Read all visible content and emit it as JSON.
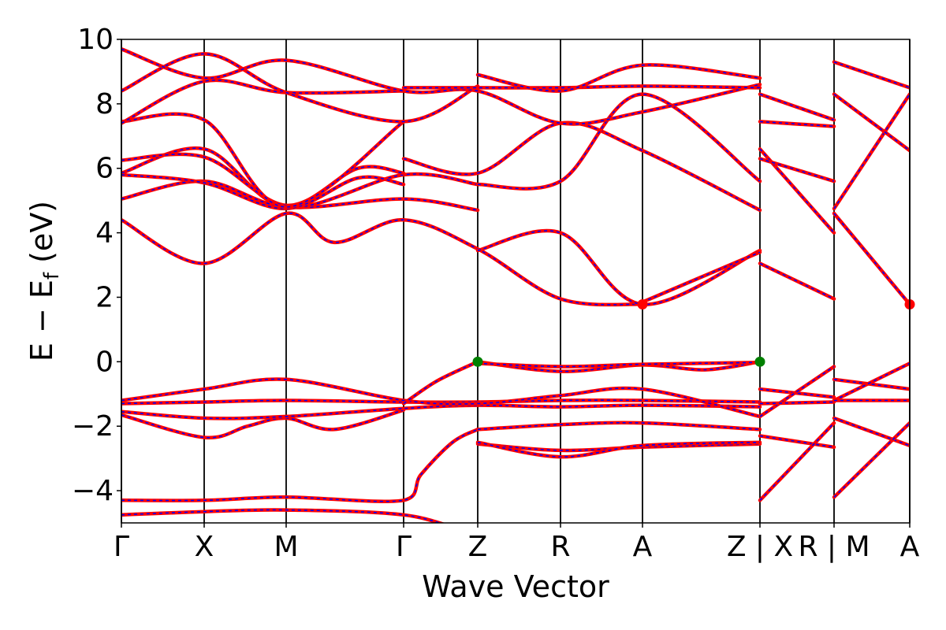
{
  "chart_data": {
    "type": "line",
    "title": "",
    "xlabel": "Wave Vector",
    "ylabel": "E − E_f (eV)",
    "ylabel_parts": {
      "main": "E − E",
      "sub": "f",
      "unit": " (eV)"
    },
    "ylim": [
      -5,
      10
    ],
    "y_ticks": [
      -4,
      -2,
      0,
      2,
      4,
      6,
      8,
      10
    ],
    "y_tick_labels": [
      "−4",
      "−2",
      "0",
      "2",
      "4",
      "6",
      "8",
      "10"
    ],
    "k_points": [
      {
        "label": "Γ",
        "k": 0.0
      },
      {
        "label": "X",
        "k": 0.105
      },
      {
        "label": "M",
        "k": 0.209
      },
      {
        "label": "Γ",
        "k": 0.358
      },
      {
        "label": "Z",
        "k": 0.452
      },
      {
        "label": "R",
        "k": 0.557
      },
      {
        "label": "A",
        "k": 0.661
      },
      {
        "label": "Z | X",
        "k": 0.81
      },
      {
        "label": "R | M",
        "k": 0.904
      },
      {
        "label": "A",
        "k": 1.0
      }
    ],
    "x_tick_labels": [
      "Γ",
      "X",
      "M",
      "Γ",
      "Z",
      "R",
      "A",
      "Z | X",
      "R | M",
      "A"
    ],
    "band_line_colors": {
      "outer": "#ff0000",
      "inner_dash": "#0000ff"
    },
    "markers": [
      {
        "type": "VBM",
        "k": 0.452,
        "energy": 0.0,
        "color": "#008000"
      },
      {
        "type": "VBM",
        "k": 0.81,
        "energy": 0.0,
        "color": "#008000"
      },
      {
        "type": "CBM",
        "k": 0.661,
        "energy": 1.78,
        "color": "#ff0000"
      },
      {
        "type": "CBM",
        "k": 1.0,
        "energy": 1.78,
        "color": "#ff0000"
      }
    ],
    "series": [
      {
        "k": [
          0.0,
          0.105,
          0.209,
          0.358,
          0.452,
          0.557,
          0.661,
          0.81
        ],
        "values": [
          -4.75,
          -4.65,
          -4.6,
          -4.75,
          -5.3,
          -5.3,
          -5.3,
          -5.3
        ]
      },
      {
        "k": [
          0.0,
          0.105,
          0.209,
          0.358,
          0.38,
          0.42,
          0.452
        ],
        "values": [
          -4.3,
          -4.3,
          -4.2,
          -4.3,
          -3.5,
          -2.5,
          -2.1
        ]
      },
      {
        "k": [
          0.452,
          0.557,
          0.661,
          0.81
        ],
        "values": [
          -2.1,
          -1.95,
          -1.9,
          -2.1
        ]
      },
      {
        "k": [
          0.452,
          0.557,
          0.661,
          0.81
        ],
        "values": [
          -2.55,
          -2.75,
          -2.65,
          -2.55
        ]
      },
      {
        "k": [
          0.452,
          0.557,
          0.661,
          0.81
        ],
        "values": [
          -2.5,
          -2.95,
          -2.6,
          -2.5
        ]
      },
      {
        "k": [
          0.0,
          0.105,
          0.16,
          0.209,
          0.27,
          0.358
        ],
        "values": [
          -1.65,
          -2.35,
          -2.0,
          -1.75,
          -2.1,
          -1.5
        ]
      },
      {
        "k": [
          0.0,
          0.105,
          0.209,
          0.358,
          0.452,
          0.557,
          0.661,
          0.81
        ],
        "values": [
          -1.55,
          -1.75,
          -1.7,
          -1.45,
          -1.35,
          -1.4,
          -1.35,
          -1.4
        ]
      },
      {
        "k": [
          0.0,
          0.105,
          0.209,
          0.358,
          0.452,
          0.557,
          0.661,
          0.81
        ],
        "values": [
          -1.3,
          -1.25,
          -1.2,
          -1.25,
          -1.25,
          -1.2,
          -1.2,
          -1.25
        ]
      },
      {
        "k": [
          0.0,
          0.105,
          0.209,
          0.358,
          0.452,
          0.557,
          0.661,
          0.81
        ],
        "values": [
          -1.2,
          -0.85,
          -0.55,
          -1.2,
          -1.3,
          -1.05,
          -0.85,
          -1.7
        ]
      },
      {
        "k": [
          0.358,
          0.4,
          0.452
        ],
        "values": [
          -1.3,
          -0.6,
          0.0
        ]
      },
      {
        "k": [
          0.452,
          0.557,
          0.661,
          0.74,
          0.81
        ],
        "values": [
          0.0,
          -0.3,
          -0.1,
          -0.25,
          0.0
        ]
      },
      {
        "k": [
          0.452,
          0.557,
          0.661,
          0.81
        ],
        "values": [
          -0.05,
          -0.15,
          -0.08,
          -0.02
        ]
      },
      {
        "k": [
          0.81,
          0.904
        ],
        "values": [
          -0.85,
          -1.1
        ]
      },
      {
        "k": [
          0.81,
          0.904
        ],
        "values": [
          -1.7,
          -0.15
        ]
      },
      {
        "k": [
          0.81,
          0.904
        ],
        "values": [
          -2.3,
          -2.65
        ]
      },
      {
        "k": [
          0.81,
          0.904
        ],
        "values": [
          -4.3,
          -1.9
        ]
      },
      {
        "k": [
          0.81,
          0.904
        ],
        "values": [
          -1.3,
          -1.25
        ]
      },
      {
        "k": [
          0.904,
          1.0
        ],
        "values": [
          -0.55,
          -0.85
        ]
      },
      {
        "k": [
          0.904,
          1.0
        ],
        "values": [
          -1.2,
          -0.05
        ]
      },
      {
        "k": [
          0.904,
          1.0
        ],
        "values": [
          -1.75,
          -2.6
        ]
      },
      {
        "k": [
          0.904,
          1.0
        ],
        "values": [
          -4.2,
          -1.9
        ]
      },
      {
        "k": [
          0.904,
          1.0
        ],
        "values": [
          -1.2,
          -1.2
        ]
      },
      {
        "k": [
          0.0,
          0.105,
          0.209,
          0.27,
          0.358,
          0.452,
          0.557,
          0.661
        ],
        "values": [
          4.4,
          3.05,
          4.6,
          3.7,
          4.4,
          3.5,
          1.95,
          1.78
        ]
      },
      {
        "k": [
          0.452,
          0.557,
          0.661,
          0.81
        ],
        "values": [
          3.45,
          4.0,
          1.78,
          3.45
        ]
      },
      {
        "k": [
          0.661,
          0.81
        ],
        "values": [
          1.85,
          3.4
        ]
      },
      {
        "k": [
          0.81,
          0.904
        ],
        "values": [
          3.05,
          1.95
        ]
      },
      {
        "k": [
          0.904,
          1.0
        ],
        "values": [
          4.6,
          1.78
        ]
      },
      {
        "k": [
          0.0,
          0.105,
          0.209,
          0.358,
          0.452
        ],
        "values": [
          5.05,
          5.6,
          4.8,
          5.05,
          4.7
        ]
      },
      {
        "k": [
          0.0,
          0.105,
          0.209,
          0.358,
          0.452
        ],
        "values": [
          5.85,
          6.6,
          4.8,
          5.8,
          5.5
        ]
      },
      {
        "k": [
          0.0,
          0.105,
          0.209,
          0.3,
          0.358
        ],
        "values": [
          5.8,
          5.55,
          4.75,
          5.7,
          5.5
        ]
      },
      {
        "k": [
          0.0,
          0.105,
          0.209,
          0.3,
          0.358
        ],
        "values": [
          6.25,
          6.35,
          4.85,
          6.0,
          5.85
        ]
      },
      {
        "k": [
          0.358,
          0.452,
          0.557,
          0.661,
          0.81
        ],
        "values": [
          6.3,
          5.85,
          7.4,
          6.55,
          4.7
        ]
      },
      {
        "k": [
          0.452,
          0.557,
          0.661,
          0.81
        ],
        "values": [
          5.5,
          5.6,
          8.3,
          5.6
        ]
      },
      {
        "k": [
          0.0,
          0.105,
          0.209,
          0.358
        ],
        "values": [
          7.45,
          7.5,
          4.8,
          7.45
        ]
      },
      {
        "k": [
          0.0,
          0.105,
          0.209,
          0.358
        ],
        "values": [
          7.4,
          8.7,
          8.35,
          8.4
        ]
      },
      {
        "k": [
          0.0,
          0.105,
          0.209,
          0.358,
          0.452
        ],
        "values": [
          8.4,
          9.55,
          8.35,
          7.45,
          8.55
        ]
      },
      {
        "k": [
          0.0,
          0.105,
          0.209,
          0.358,
          0.452,
          0.557,
          0.661,
          0.81
        ],
        "values": [
          9.7,
          8.8,
          9.35,
          8.4,
          8.4,
          7.4,
          7.75,
          8.6
        ]
      },
      {
        "k": [
          0.358,
          0.452,
          0.557,
          0.661,
          0.81
        ],
        "values": [
          8.5,
          8.5,
          8.5,
          8.55,
          8.5
        ]
      },
      {
        "k": [
          0.452,
          0.557,
          0.661,
          0.81
        ],
        "values": [
          8.9,
          8.4,
          9.2,
          8.8
        ]
      },
      {
        "k": [
          0.81,
          0.904
        ],
        "values": [
          7.45,
          7.3
        ]
      },
      {
        "k": [
          0.81,
          0.904
        ],
        "values": [
          6.6,
          4.0
        ]
      },
      {
        "k": [
          0.81,
          0.904
        ],
        "values": [
          6.3,
          5.6
        ]
      },
      {
        "k": [
          0.81,
          0.904
        ],
        "values": [
          8.3,
          7.5
        ]
      },
      {
        "k": [
          0.904,
          1.0
        ],
        "values": [
          4.75,
          8.3
        ]
      },
      {
        "k": [
          0.904,
          1.0
        ],
        "values": [
          8.3,
          6.55
        ]
      },
      {
        "k": [
          0.904,
          1.0
        ],
        "values": [
          9.3,
          8.5
        ]
      }
    ]
  }
}
